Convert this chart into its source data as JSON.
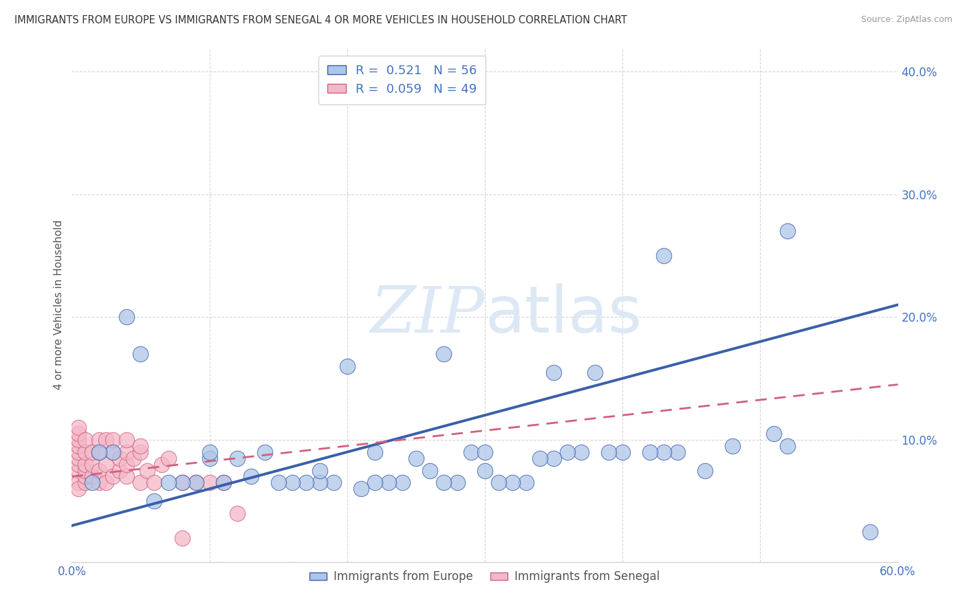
{
  "title": "IMMIGRANTS FROM EUROPE VS IMMIGRANTS FROM SENEGAL 4 OR MORE VEHICLES IN HOUSEHOLD CORRELATION CHART",
  "source": "Source: ZipAtlas.com",
  "ylabel": "4 or more Vehicles in Household",
  "xmin": 0.0,
  "xmax": 0.6,
  "ymin": 0.0,
  "ymax": 0.42,
  "yticks": [
    0.0,
    0.1,
    0.2,
    0.3,
    0.4
  ],
  "ytick_labels": [
    "",
    "10.0%",
    "20.0%",
    "30.0%",
    "40.0%"
  ],
  "xticks": [
    0.0,
    0.1,
    0.2,
    0.3,
    0.4,
    0.5,
    0.6
  ],
  "xtick_labels": [
    "0.0%",
    "",
    "",
    "",
    "",
    "",
    "60.0%"
  ],
  "legend_europe_r": "0.521",
  "legend_europe_n": "56",
  "legend_senegal_r": "0.059",
  "legend_senegal_n": "49",
  "europe_color": "#aec6e8",
  "senegal_color": "#f4b8c8",
  "europe_line_color": "#3a5faa",
  "senegal_line_color": "#d06080",
  "background_color": "#ffffff",
  "grid_color": "#cccccc",
  "title_color": "#333333",
  "axis_label_color": "#4472c4",
  "watermark_color": "#dde8f5",
  "europe_scatter_x": [
    0.58,
    0.51,
    0.52,
    0.48,
    0.46,
    0.44,
    0.43,
    0.42,
    0.4,
    0.39,
    0.37,
    0.36,
    0.35,
    0.34,
    0.33,
    0.32,
    0.31,
    0.3,
    0.29,
    0.28,
    0.27,
    0.26,
    0.25,
    0.24,
    0.23,
    0.22,
    0.21,
    0.2,
    0.19,
    0.18,
    0.17,
    0.16,
    0.15,
    0.14,
    0.13,
    0.12,
    0.11,
    0.1,
    0.09,
    0.08,
    0.07,
    0.06,
    0.05,
    0.04,
    0.03,
    0.02,
    0.015,
    0.22,
    0.3,
    0.35,
    0.38,
    0.27,
    0.18,
    0.1,
    0.52,
    0.43
  ],
  "europe_scatter_y": [
    0.025,
    0.105,
    0.095,
    0.095,
    0.075,
    0.09,
    0.09,
    0.09,
    0.09,
    0.09,
    0.09,
    0.09,
    0.085,
    0.085,
    0.065,
    0.065,
    0.065,
    0.075,
    0.09,
    0.065,
    0.065,
    0.075,
    0.085,
    0.065,
    0.065,
    0.065,
    0.06,
    0.16,
    0.065,
    0.065,
    0.065,
    0.065,
    0.065,
    0.09,
    0.07,
    0.085,
    0.065,
    0.085,
    0.065,
    0.065,
    0.065,
    0.05,
    0.17,
    0.2,
    0.09,
    0.09,
    0.065,
    0.09,
    0.09,
    0.155,
    0.155,
    0.17,
    0.075,
    0.09,
    0.27,
    0.25
  ],
  "senegal_scatter_x": [
    0.005,
    0.005,
    0.005,
    0.005,
    0.005,
    0.005,
    0.005,
    0.005,
    0.005,
    0.005,
    0.01,
    0.01,
    0.01,
    0.01,
    0.01,
    0.01,
    0.015,
    0.015,
    0.015,
    0.02,
    0.02,
    0.02,
    0.02,
    0.025,
    0.025,
    0.025,
    0.03,
    0.03,
    0.03,
    0.035,
    0.035,
    0.04,
    0.04,
    0.04,
    0.04,
    0.045,
    0.05,
    0.05,
    0.055,
    0.06,
    0.065,
    0.07,
    0.08,
    0.09,
    0.1,
    0.11,
    0.12,
    0.05,
    0.08
  ],
  "senegal_scatter_y": [
    0.075,
    0.08,
    0.085,
    0.09,
    0.095,
    0.1,
    0.105,
    0.11,
    0.065,
    0.06,
    0.065,
    0.07,
    0.075,
    0.08,
    0.09,
    0.1,
    0.07,
    0.08,
    0.09,
    0.065,
    0.075,
    0.09,
    0.1,
    0.065,
    0.08,
    0.1,
    0.07,
    0.09,
    0.1,
    0.075,
    0.085,
    0.07,
    0.08,
    0.09,
    0.1,
    0.085,
    0.065,
    0.09,
    0.075,
    0.065,
    0.08,
    0.085,
    0.065,
    0.065,
    0.065,
    0.065,
    0.04,
    0.095,
    0.02
  ],
  "europe_line_x0": 0.0,
  "europe_line_x1": 0.6,
  "europe_line_y0": 0.03,
  "europe_line_y1": 0.21,
  "senegal_line_x0": 0.0,
  "senegal_line_x1": 0.6,
  "senegal_line_y0": 0.07,
  "senegal_line_y1": 0.145
}
